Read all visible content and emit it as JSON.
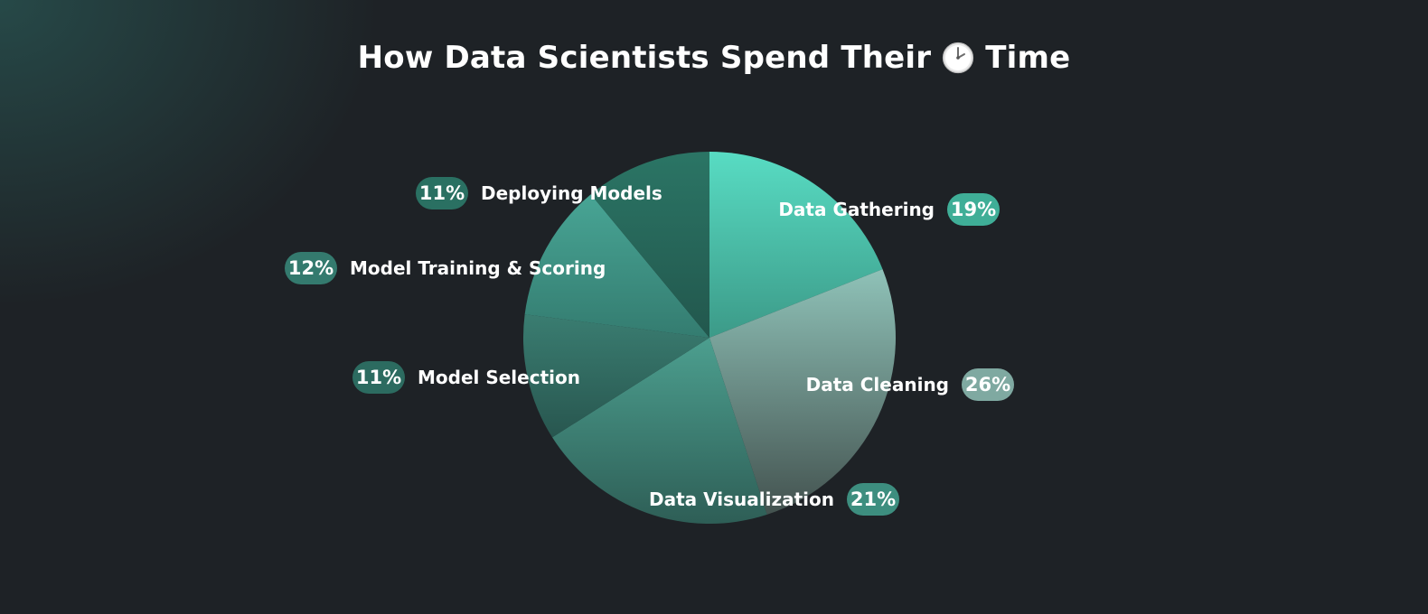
{
  "title": {
    "before": "How Data Scientists Spend Their",
    "icon": "clock-icon",
    "after": "Time"
  },
  "colors": {
    "background": "#1e2226",
    "accent": "#4fd6bc"
  },
  "chart_data": {
    "type": "pie",
    "title": "How Data Scientists Spend Their 🕑 Time",
    "unit": "%",
    "slices": [
      {
        "label": "Data Gathering",
        "value": 19,
        "display": "19%",
        "color_top": "#58dcc3",
        "color_bottom": "#3c9a88",
        "pill": "#3fae97"
      },
      {
        "label": "Data Cleaning",
        "value": 26,
        "display": "26%",
        "color_top": "#8fc2b8",
        "color_bottom": "#43524f",
        "pill": "#7fa9a1"
      },
      {
        "label": "Data Visualization",
        "value": 21,
        "display": "21%",
        "color_top": "#4c9f8f",
        "color_bottom": "#2e5e56",
        "pill": "#3d8e7f"
      },
      {
        "label": "Model Selection",
        "value": 11,
        "display": "11%",
        "color_top": "#3a7d71",
        "color_bottom": "#28564f",
        "pill": "#2c6b60"
      },
      {
        "label": "Model Training & Scoring",
        "value": 12,
        "display": "12%",
        "color_top": "#48a595",
        "color_bottom": "#347c70",
        "pill": "#347a6e"
      },
      {
        "label": "Deploying Models",
        "value": 11,
        "display": "11%",
        "color_top": "#2b7565",
        "color_bottom": "#22574d",
        "pill": "#2a7062"
      }
    ]
  }
}
